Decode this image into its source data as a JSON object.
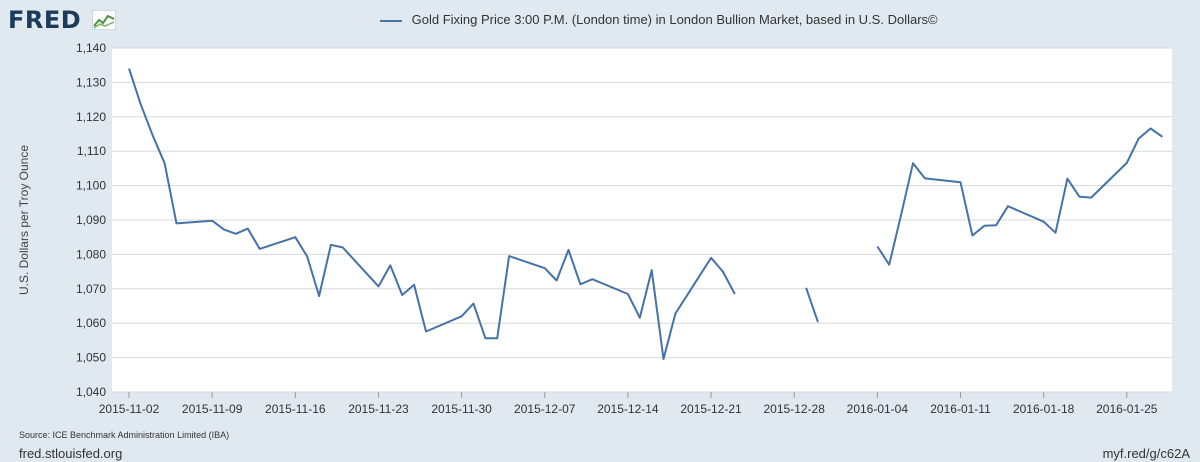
{
  "header": {
    "logo_text": "FRED"
  },
  "footer": {
    "source": "Source: ICE Benchmark Administration Limited (IBA)",
    "site": "fred.stlouisfed.org",
    "short_url": "myf.red/g/c62A"
  },
  "colors": {
    "background": "#e1e9f0",
    "plot_background": "#ffffff",
    "series": "#4572a7",
    "grid": "#d8d8d8"
  },
  "chart_data": {
    "type": "line",
    "title": "",
    "ylabel": "U.S. Dollars per Troy Ounce",
    "xlabel": "",
    "ylim": [
      1040,
      1140
    ],
    "xlim": [
      "2015-11-02",
      "2016-01-27"
    ],
    "grid": true,
    "legend_position": "top-center",
    "y_ticks": [
      1040,
      1050,
      1060,
      1070,
      1080,
      1090,
      1100,
      1110,
      1120,
      1130,
      1140
    ],
    "y_tick_labels": [
      "1,040",
      "1,050",
      "1,060",
      "1,070",
      "1,080",
      "1,090",
      "1,100",
      "1,110",
      "1,120",
      "1,130",
      "1,140"
    ],
    "x_ticks": [
      "2015-11-02",
      "2015-11-09",
      "2015-11-16",
      "2015-11-23",
      "2015-11-30",
      "2015-12-07",
      "2015-12-14",
      "2015-12-21",
      "2015-12-28",
      "2016-01-04",
      "2016-01-11",
      "2016-01-18",
      "2016-01-25"
    ],
    "series": [
      {
        "name": "Gold Fixing Price 3:00 P.M. (London time) in London Bullion Market, based in U.S. Dollars©",
        "points": [
          [
            "2015-11-02",
            1134
          ],
          [
            "2015-11-03",
            1123.5
          ],
          [
            "2015-11-04",
            1114.5
          ],
          [
            "2015-11-05",
            1106.5
          ],
          [
            "2015-11-06",
            1089
          ],
          [
            "2015-11-09",
            1089.8
          ],
          [
            "2015-11-10",
            1087.2
          ],
          [
            "2015-11-11",
            1086
          ],
          [
            "2015-11-12",
            1087.5
          ],
          [
            "2015-11-13",
            1081.6
          ],
          [
            "2015-11-16",
            1085
          ],
          [
            "2015-11-17",
            1079.4
          ],
          [
            "2015-11-18",
            1067.9
          ],
          [
            "2015-11-19",
            1082.8
          ],
          [
            "2015-11-20",
            1082
          ],
          [
            "2015-11-23",
            1070.7
          ],
          [
            "2015-11-24",
            1076.8
          ],
          [
            "2015-11-25",
            1068.2
          ],
          [
            "2015-11-26",
            1071.2
          ],
          [
            "2015-11-27",
            1057.6
          ],
          [
            "2015-11-30",
            1062
          ],
          [
            "2015-12-01",
            1065.7
          ],
          [
            "2015-12-02",
            1055.6
          ],
          [
            "2015-12-03",
            1055.6
          ],
          [
            "2015-12-04",
            1079.5
          ],
          [
            "2015-12-07",
            1076
          ],
          [
            "2015-12-08",
            1072.4
          ],
          [
            "2015-12-09",
            1081.3
          ],
          [
            "2015-12-10",
            1071.3
          ],
          [
            "2015-12-11",
            1072.8
          ],
          [
            "2015-12-14",
            1068.5
          ],
          [
            "2015-12-15",
            1061.6
          ],
          [
            "2015-12-16",
            1075.4
          ],
          [
            "2015-12-17",
            1049.6
          ],
          [
            "2015-12-18",
            1062.8
          ],
          [
            "2015-12-21",
            1079
          ],
          [
            "2015-12-22",
            1075
          ],
          [
            "2015-12-23",
            1068.5
          ],
          [
            "2015-12-24",
            null
          ],
          [
            "2015-12-25",
            null
          ],
          [
            "2015-12-28",
            null
          ],
          [
            "2015-12-29",
            1070.3
          ],
          [
            "2015-12-30",
            1060.3
          ],
          [
            "2015-12-31",
            null
          ],
          [
            "2016-01-01",
            null
          ],
          [
            "2016-01-04",
            1082.3
          ],
          [
            "2016-01-05",
            1077
          ],
          [
            "2016-01-06",
            1091.5
          ],
          [
            "2016-01-07",
            1106.5
          ],
          [
            "2016-01-08",
            1102.1
          ],
          [
            "2016-01-11",
            1101
          ],
          [
            "2016-01-12",
            1085.5
          ],
          [
            "2016-01-13",
            1088.3
          ],
          [
            "2016-01-14",
            1088.5
          ],
          [
            "2016-01-15",
            1094
          ],
          [
            "2016-01-18",
            1089.5
          ],
          [
            "2016-01-19",
            1086.3
          ],
          [
            "2016-01-20",
            1102
          ],
          [
            "2016-01-21",
            1096.8
          ],
          [
            "2016-01-22",
            1096.5
          ],
          [
            "2016-01-25",
            1106.6
          ],
          [
            "2016-01-26",
            1113.7
          ],
          [
            "2016-01-27",
            1116.6
          ],
          [
            "2016-01-28",
            1114.2
          ]
        ]
      }
    ]
  }
}
